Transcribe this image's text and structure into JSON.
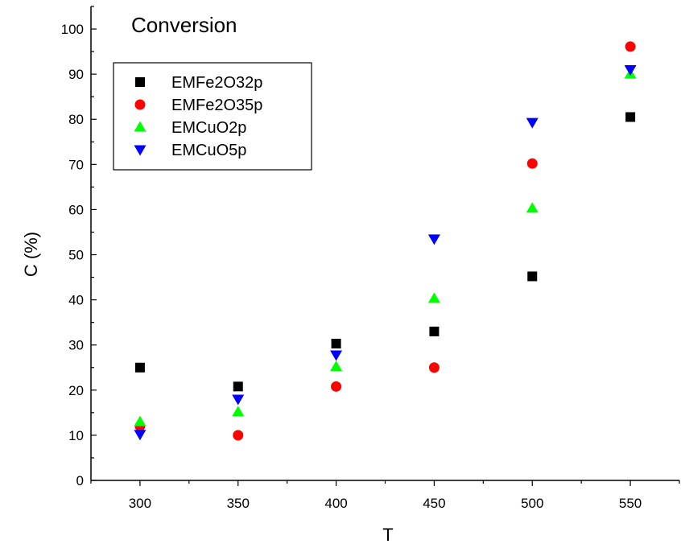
{
  "chart_data": {
    "type": "scatter",
    "title": "Conversion",
    "xlabel": "T",
    "ylabel": "C (%)",
    "xlim": [
      275,
      575
    ],
    "ylim": [
      0,
      105
    ],
    "xticks": [
      300,
      350,
      400,
      450,
      500,
      550
    ],
    "yticks": [
      0,
      10,
      20,
      30,
      40,
      50,
      60,
      70,
      80,
      90,
      100
    ],
    "grid": false,
    "legend_position": "top-left",
    "x": [
      300,
      350,
      400,
      450,
      500,
      550
    ],
    "series": [
      {
        "name": "EMFe2O32p",
        "marker": "square",
        "color": "#000000",
        "values": [
          25,
          20.8,
          30.3,
          33,
          45.2,
          80.5
        ]
      },
      {
        "name": "EMFe2O35p",
        "marker": "circle",
        "color": "#ff0000",
        "values": [
          12,
          10,
          20.8,
          25,
          70.2,
          96.1
        ]
      },
      {
        "name": "EMCuO2p",
        "marker": "triangle-up",
        "color": "#00ff00",
        "values": [
          13,
          15.2,
          25.2,
          40.3,
          60.3,
          90
        ]
      },
      {
        "name": "EMCuO5p",
        "marker": "triangle-down",
        "color": "#0000ff",
        "values": [
          10.2,
          18,
          27.8,
          53.5,
          79.3,
          91
        ]
      }
    ]
  }
}
